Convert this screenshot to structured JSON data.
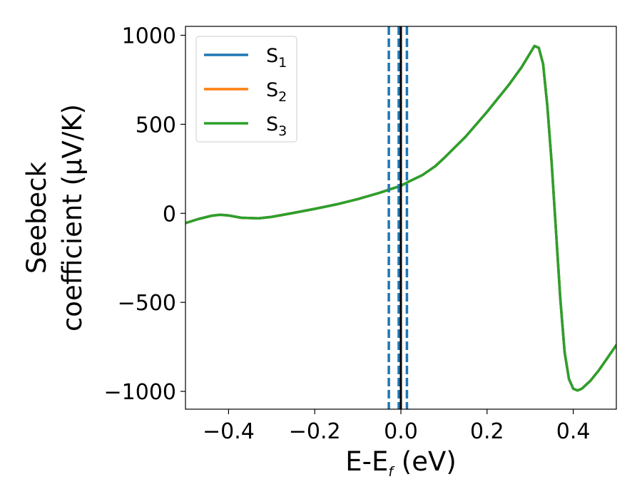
{
  "chart_data": {
    "type": "line",
    "xlabel": "E-E",
    "xlabel_subscript": "f",
    "xlabel_unit": " (eV)",
    "ylabel_line1": "Seebeck",
    "ylabel_line2": "coefficient  (μV/K)",
    "xlim": [
      -0.5,
      0.5
    ],
    "ylim": [
      -1100,
      1050
    ],
    "xticks": [
      -0.4,
      -0.2,
      0.0,
      0.2,
      0.4
    ],
    "xtick_labels": [
      "−0.4",
      "−0.2",
      "0.0",
      "0.2",
      "0.4"
    ],
    "yticks": [
      -1000,
      -500,
      0,
      500,
      1000
    ],
    "ytick_labels": [
      "−1000",
      "−500",
      "0",
      "500",
      "1000"
    ],
    "grid": false,
    "legend_position": "top-left",
    "x": [
      -0.5,
      -0.47,
      -0.44,
      -0.42,
      -0.4,
      -0.37,
      -0.33,
      -0.3,
      -0.25,
      -0.2,
      -0.15,
      -0.1,
      -0.05,
      0.0,
      0.02,
      0.05,
      0.08,
      0.1,
      0.15,
      0.2,
      0.25,
      0.28,
      0.3,
      0.31,
      0.32,
      0.33,
      0.34,
      0.35,
      0.36,
      0.37,
      0.38,
      0.39,
      0.4,
      0.41,
      0.42,
      0.44,
      0.46,
      0.48,
      0.5
    ],
    "series": [
      {
        "name": "S",
        "subscript": "1",
        "color": "#1f77b4",
        "values": [
          -55,
          -32,
          -14,
          -8,
          -12,
          -25,
          -28,
          -20,
          2,
          25,
          50,
          80,
          115,
          155,
          180,
          215,
          265,
          310,
          430,
          570,
          720,
          820,
          900,
          940,
          930,
          840,
          600,
          280,
          -100,
          -480,
          -780,
          -930,
          -985,
          -995,
          -985,
          -940,
          -880,
          -810,
          -740
        ]
      },
      {
        "name": "S",
        "subscript": "2",
        "color": "#ff7f0e",
        "values": [
          -55,
          -32,
          -14,
          -8,
          -12,
          -25,
          -28,
          -20,
          2,
          25,
          50,
          80,
          115,
          155,
          180,
          215,
          265,
          310,
          430,
          570,
          720,
          820,
          900,
          940,
          930,
          840,
          600,
          280,
          -100,
          -480,
          -780,
          -930,
          -985,
          -995,
          -985,
          -940,
          -880,
          -810,
          -740
        ]
      },
      {
        "name": "S",
        "subscript": "3",
        "color": "#2ca02c",
        "values": [
          -55,
          -32,
          -14,
          -8,
          -12,
          -25,
          -28,
          -20,
          2,
          25,
          50,
          80,
          115,
          155,
          180,
          215,
          265,
          310,
          430,
          570,
          720,
          820,
          900,
          940,
          930,
          840,
          600,
          280,
          -100,
          -480,
          -780,
          -930,
          -985,
          -995,
          -985,
          -940,
          -880,
          -810,
          -740
        ]
      }
    ],
    "vertical_lines": [
      {
        "x": -0.028,
        "style": "dashed",
        "color": "#1f77b4"
      },
      {
        "x": -0.005,
        "style": "dashed",
        "color": "#1f77b4"
      },
      {
        "x": 0.0,
        "style": "solid",
        "color": "#000000"
      },
      {
        "x": 0.014,
        "style": "dashed",
        "color": "#1f77b4"
      }
    ]
  }
}
